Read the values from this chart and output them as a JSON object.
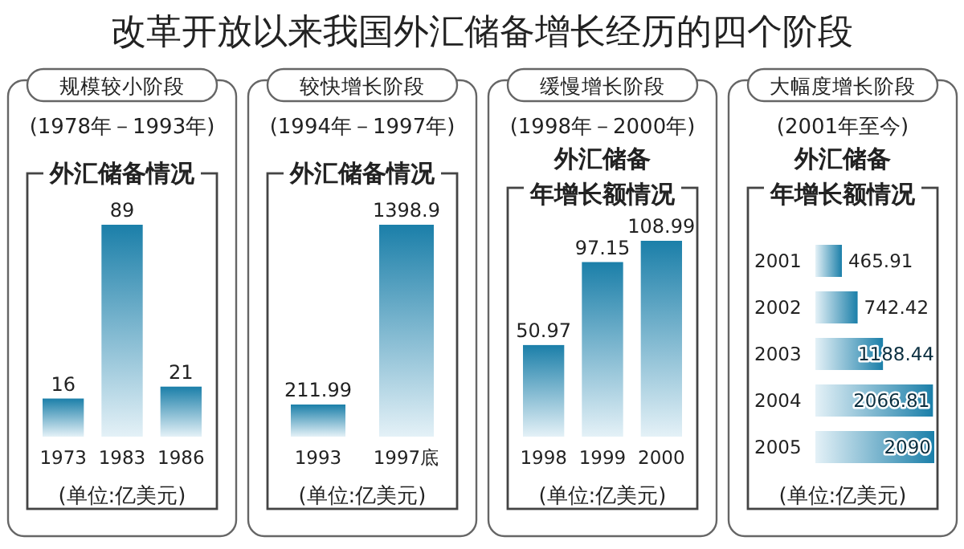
{
  "chart_data": [
    {
      "type": "other",
      "title": "改革开放以来我国外汇储备增长经历的四个阶段"
    },
    {
      "type": "bar",
      "title": "规模较小阶段",
      "subtitle": "(1978年－1993年)",
      "annotations": [
        "外汇储备情况",
        "(单位:亿美元)"
      ],
      "categories": [
        "1973",
        "1983",
        "1986"
      ],
      "values": [
        16,
        89,
        21
      ],
      "color": "#1b7fa9",
      "data_labels": true
    },
    {
      "type": "bar",
      "title": "较快增长阶段",
      "subtitle": "(1994年－1997年)",
      "annotations": [
        "外汇储备情况",
        "(单位:亿美元)"
      ],
      "categories": [
        "1993",
        "1997底"
      ],
      "values": [
        211.99,
        1398.9
      ],
      "color": "#1b7fa9",
      "data_labels": true
    },
    {
      "type": "bar",
      "title": "缓慢增长阶段",
      "subtitle": "(1998年－2000年)",
      "annotations": [
        "外汇储备年增长额情况",
        "(单位:亿美元)"
      ],
      "categories": [
        "1998",
        "1999",
        "2000"
      ],
      "values": [
        50.97,
        97.15,
        108.99
      ],
      "color": "#1b7fa9",
      "data_labels": true
    },
    {
      "type": "bar",
      "orientation": "horizontal",
      "title": "大幅度增长阶段",
      "subtitle": "(2001年至今)",
      "annotations": [
        "外汇储备年增长额情况",
        "(单位:亿美元)"
      ],
      "categories": [
        "2001",
        "2002",
        "2003",
        "2004",
        "2005"
      ],
      "values": [
        465.91,
        742.42,
        1188.44,
        2066.81,
        2090
      ],
      "color": "#1b7fa9",
      "data_labels": true
    }
  ]
}
